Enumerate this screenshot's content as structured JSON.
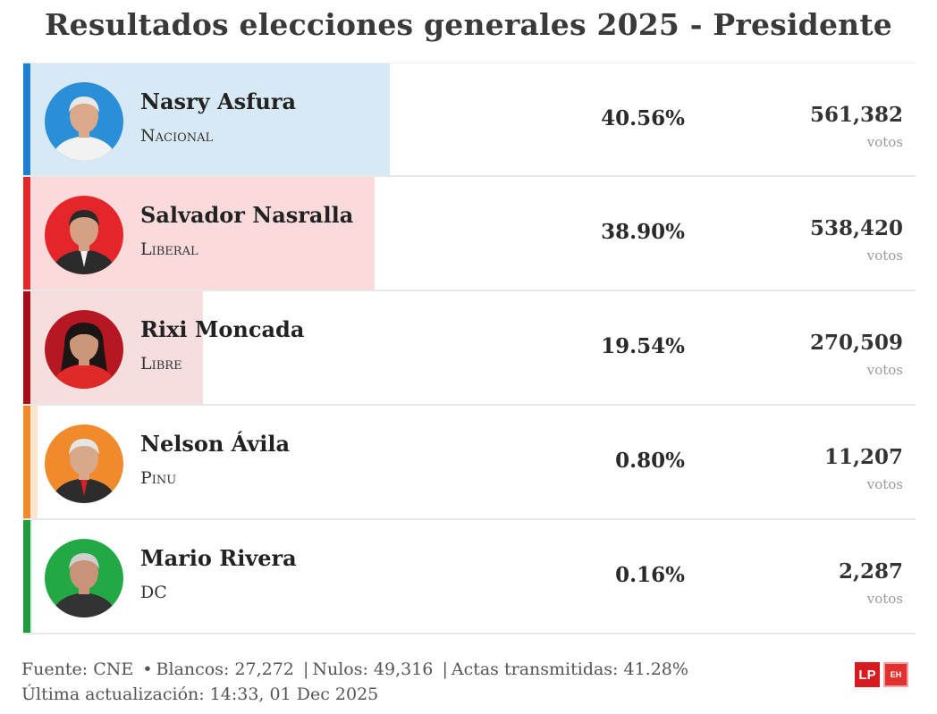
{
  "title": "Resultados elecciones generales 2025 - Presidente",
  "chart_data": {
    "type": "bar",
    "title": "Resultados elecciones generales 2025 - Presidente",
    "categories": [
      "Nasry Asfura",
      "Salvador Nasralla",
      "Rixi Moncada",
      "Nelson Ávila",
      "Mario Rivera"
    ],
    "values": [
      40.56,
      38.9,
      19.54,
      0.8,
      0.16
    ],
    "ylim": [
      0,
      100
    ],
    "candidates": [
      {
        "name": "Nasry Asfura",
        "party": "Nacional",
        "percent": 40.56,
        "percent_label": "40.56%",
        "votes": 561382,
        "votes_label": "561,382",
        "color": "#1f7fd1",
        "bar_color": "#d7e9f5",
        "avatar_bg": "#2b8fd8",
        "skin": "#d9a98a",
        "hair": "#e8e8e8",
        "shirt": "#f2f2f2"
      },
      {
        "name": "Salvador Nasralla",
        "party": "Liberal",
        "percent": 38.9,
        "percent_label": "38.90%",
        "votes": 538420,
        "votes_label": "538,420",
        "color": "#e02a2a",
        "bar_color": "#fbdadb",
        "avatar_bg": "#e4262b",
        "skin": "#d4a184",
        "hair": "#2a2a2a",
        "shirt": "#2b2b2b"
      },
      {
        "name": "Rixi Moncada",
        "party": "Libre",
        "percent": 19.54,
        "percent_label": "19.54%",
        "votes": 270509,
        "votes_label": "270,509",
        "color": "#a50f19",
        "bar_color": "#f6dedf",
        "avatar_bg": "#b51822",
        "skin": "#c99878",
        "hair": "#1d1414",
        "shirt": "#e02a2a"
      },
      {
        "name": "Nelson Ávila",
        "party": "Pinu",
        "percent": 0.8,
        "percent_label": "0.80%",
        "votes": 11207,
        "votes_label": "11,207",
        "color": "#f08a2c",
        "bar_color": "#fde5d0",
        "avatar_bg": "#f08a2c",
        "skin": "#d8a88a",
        "hair": "#e5e5e5",
        "shirt": "#2c2c2c"
      },
      {
        "name": "Mario Rivera",
        "party": "DC",
        "percent": 0.16,
        "percent_label": "0.16%",
        "votes": 2287,
        "votes_label": "2,287",
        "color": "#1f9a3e",
        "bar_color": "#d8efdd",
        "avatar_bg": "#22a845",
        "skin": "#c9937a",
        "hair": "#cfcfcf",
        "shirt": "#333333"
      }
    ]
  },
  "votes_unit": "votos",
  "footer": {
    "source": "Fuente: CNE",
    "bullet": "•",
    "blancos": "Blancos: 27,272",
    "nulos": "Nulos: 49,316",
    "actas": "Actas transmitidas: 41.28%",
    "divider": "|",
    "updated": "Última actualización: 14:33, 01 Dec 2025"
  },
  "logos": {
    "primary": "LP",
    "secondary": "EH"
  }
}
